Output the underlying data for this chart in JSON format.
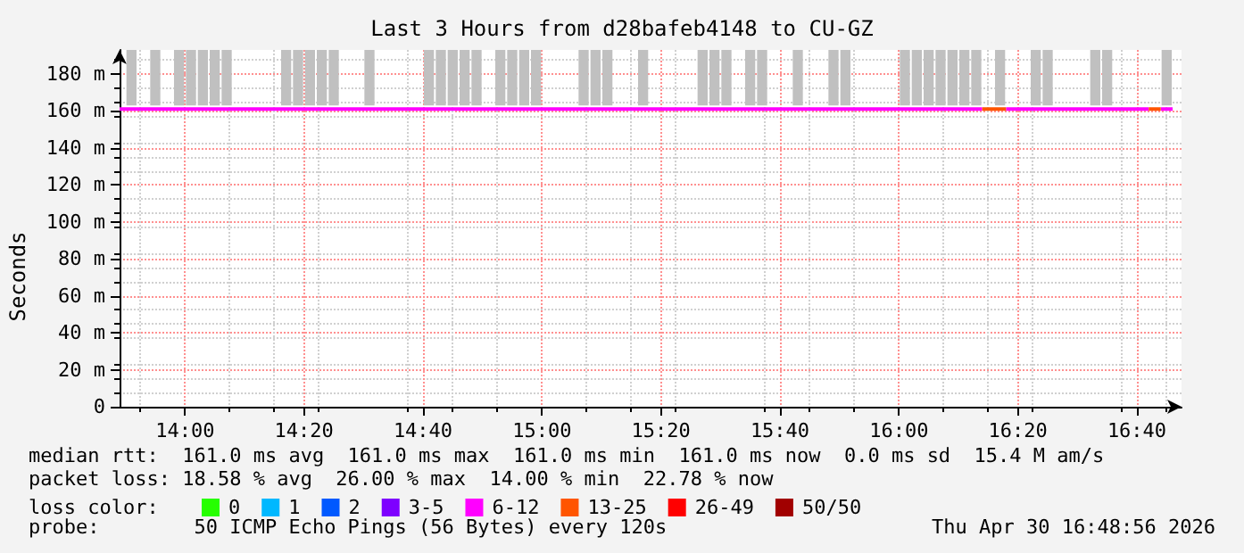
{
  "chart_data": {
    "type": "line",
    "title": "Last 3 Hours from d28bafeb4148 to CU-GZ",
    "ylabel": "Seconds",
    "xlim": [
      13.8167,
      16.7917
    ],
    "xticks": [
      {
        "value": 14,
        "label": "14:00"
      },
      {
        "value": 14.3333,
        "label": "14:20"
      },
      {
        "value": 14.6667,
        "label": "14:40"
      },
      {
        "value": 15,
        "label": "15:00"
      },
      {
        "value": 15.3333,
        "label": "15:20"
      },
      {
        "value": 15.6667,
        "label": "15:40"
      },
      {
        "value": 16,
        "label": "16:00"
      },
      {
        "value": 16.3333,
        "label": "16:20"
      },
      {
        "value": 16.6667,
        "label": "16:40"
      }
    ],
    "ylim": [
      0,
      193
    ],
    "yticks": [
      0,
      {
        "value": 20,
        "label": "20 m"
      },
      {
        "value": 40,
        "label": "40 m"
      },
      {
        "value": 60,
        "label": "60 m"
      },
      {
        "value": 80,
        "label": "80 m"
      },
      {
        "value": 100,
        "label": "100 m"
      },
      {
        "value": 120,
        "label": "120 m"
      },
      {
        "value": 140,
        "label": "140 m"
      },
      {
        "value": 160,
        "label": "160 m"
      },
      {
        "value": 180,
        "label": "180 m"
      }
    ],
    "grid": true,
    "legend": "bottom",
    "legend_title": "loss color:",
    "marker": "none",
    "line_style": "solid",
    "series": [
      {
        "type": "bar",
        "color": "#c0c0c0",
        "x": [
          13.85,
          13.9167,
          13.9833,
          14.0167,
          14.05,
          14.0833,
          14.1167,
          14.2833,
          14.3167,
          14.35,
          14.3833,
          14.4167,
          14.5167,
          14.6833,
          14.7167,
          14.75,
          14.7833,
          14.8167,
          14.8833,
          14.9167,
          14.95,
          14.9833,
          15.1167,
          15.15,
          15.1833,
          15.2833,
          15.45,
          15.4833,
          15.5167,
          15.5833,
          15.6167,
          15.7167,
          15.8167,
          15.85,
          16.0167,
          16.05,
          16.0833,
          16.1167,
          16.15,
          16.1833,
          16.2167,
          16.2833,
          16.3833,
          16.4167,
          16.55,
          16.5833,
          16.75
        ],
        "base": [
          163,
          163,
          163,
          163,
          163,
          163,
          163,
          163,
          163,
          163,
          163,
          163,
          163,
          163,
          163,
          163,
          163,
          163,
          163,
          163,
          163,
          163,
          163,
          163,
          163,
          163,
          163,
          163,
          163,
          163,
          163,
          163,
          163,
          163,
          163,
          163,
          163,
          163,
          163,
          163,
          163,
          163,
          163,
          163,
          163,
          163,
          163
        ],
        "values": [
          30,
          30,
          30,
          30,
          30,
          30,
          30,
          30,
          30,
          30,
          30,
          30,
          30,
          30,
          30,
          30,
          30,
          30,
          30,
          30,
          30,
          30,
          30,
          30,
          30,
          30,
          30,
          30,
          30,
          30,
          30,
          30,
          30,
          30,
          30,
          30,
          30,
          30,
          30,
          30,
          30,
          30,
          30,
          30,
          30,
          30,
          30
        ]
      },
      {
        "name": "0",
        "color": "#26ff00"
      },
      {
        "name": "1",
        "color": "#00b8ff"
      },
      {
        "name": "2",
        "color": "#0059ff"
      },
      {
        "name": "3-5",
        "color": "#7e00ff"
      },
      {
        "name": "6-12",
        "color": "#ff00ff",
        "x": [
          13.8167,
          16.2333,
          16.25,
          16.3,
          16.7,
          16.7167,
          16.7333,
          16.7667
        ],
        "values": [
          161,
          161,
          null,
          161,
          161,
          null,
          161,
          161
        ]
      },
      {
        "name": "13-25",
        "color": "#ff5500",
        "x": [
          16.2333,
          16.3,
          16.32,
          16.7,
          16.7333
        ],
        "values": [
          161,
          161,
          null,
          161,
          161
        ]
      },
      {
        "name": "26-49",
        "color": "#ff0000"
      },
      {
        "name": "50/50",
        "color": "#a10000"
      }
    ],
    "annotations": [
      "median rtt:  161.0 ms avg  161.0 ms max  161.0 ms min  161.0 ms now  0.0 ms sd  15.4 M am/s",
      "packet loss: 18.58 % avg  26.00 % max  14.00 % min  22.78 % now",
      "probe:        50 ICMP Echo Pings (56 Bytes) every 120s",
      "Thu Apr 30 16:48:56 2026"
    ]
  }
}
